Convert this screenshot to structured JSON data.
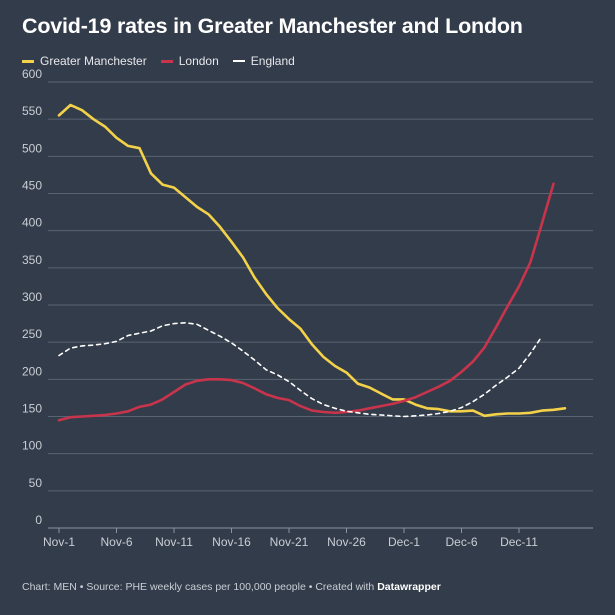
{
  "title": "Covid-19 rates in Greater Manchester and London",
  "footer": {
    "text": "Chart: MEN • Source: PHE weekly cases per 100,000 people • Created with ",
    "brand": "Datawrapper"
  },
  "colors": {
    "background": "#333c4a",
    "grid": "#5a6372",
    "greater_manchester": "#f3d24a",
    "london": "#c8344b",
    "england": "#ffffff"
  },
  "chart_data": {
    "type": "line",
    "ylim": [
      0,
      600
    ],
    "yticks": [
      0,
      50,
      100,
      150,
      200,
      250,
      300,
      350,
      400,
      450,
      500,
      550,
      600
    ],
    "x": [
      "Nov-1",
      "Nov-2",
      "Nov-3",
      "Nov-4",
      "Nov-5",
      "Nov-6",
      "Nov-7",
      "Nov-8",
      "Nov-9",
      "Nov-10",
      "Nov-11",
      "Nov-12",
      "Nov-13",
      "Nov-14",
      "Nov-15",
      "Nov-16",
      "Nov-17",
      "Nov-18",
      "Nov-19",
      "Nov-20",
      "Nov-21",
      "Nov-22",
      "Nov-23",
      "Nov-24",
      "Nov-25",
      "Nov-26",
      "Nov-27",
      "Nov-28",
      "Nov-29",
      "Nov-30",
      "Dec-1",
      "Dec-2",
      "Dec-3",
      "Dec-4",
      "Dec-5",
      "Dec-6",
      "Dec-7",
      "Dec-8",
      "Dec-9",
      "Dec-10",
      "Dec-11",
      "Dec-12",
      "Dec-13",
      "Dec-14",
      "Dec-15"
    ],
    "xticks": [
      "Nov-1",
      "Nov-6",
      "Nov-11",
      "Nov-16",
      "Nov-21",
      "Nov-26",
      "Dec-1",
      "Dec-6",
      "Dec-11"
    ],
    "grid": true,
    "legend_position": "top-left",
    "series": [
      {
        "name": "Greater Manchester",
        "color": "#f3d24a",
        "style": "solid",
        "values": [
          555,
          569,
          562,
          550,
          540,
          525,
          514,
          511,
          477,
          462,
          458,
          445,
          432,
          422,
          405,
          385,
          364,
          337,
          315,
          296,
          281,
          268,
          247,
          230,
          218,
          209,
          194,
          189,
          181,
          173,
          173,
          166,
          161,
          160,
          157,
          157,
          158,
          151,
          153,
          154,
          154,
          155,
          158,
          159,
          161
        ]
      },
      {
        "name": "London",
        "color": "#c8344b",
        "style": "solid",
        "values": [
          145,
          149,
          150,
          151,
          152,
          154,
          157,
          163,
          166,
          173,
          183,
          193,
          198,
          200,
          200,
          199,
          195,
          188,
          180,
          175,
          172,
          164,
          158,
          156,
          155,
          156,
          158,
          161,
          164,
          167,
          171,
          176,
          183,
          190,
          198,
          210,
          224,
          243,
          270,
          298,
          325,
          358,
          410,
          463,
          null
        ]
      },
      {
        "name": "England",
        "color": "#ffffff",
        "style": "dashed",
        "values": [
          232,
          242,
          245,
          246,
          248,
          251,
          259,
          262,
          265,
          272,
          275,
          276,
          274,
          266,
          258,
          249,
          238,
          226,
          213,
          206,
          197,
          185,
          174,
          166,
          161,
          157,
          155,
          153,
          152,
          151,
          150,
          151,
          152,
          154,
          157,
          162,
          170,
          180,
          192,
          203,
          215,
          235,
          258,
          null,
          null
        ]
      }
    ]
  }
}
